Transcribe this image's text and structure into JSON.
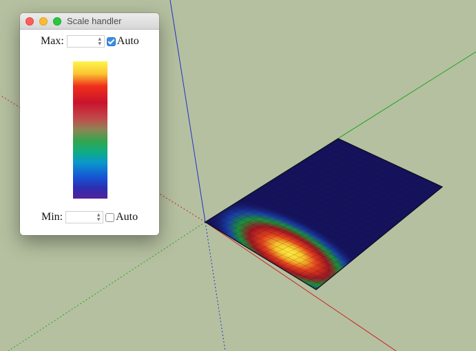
{
  "window": {
    "title": "Scale handler"
  },
  "max_control": {
    "label": "Max:",
    "value": "",
    "auto_label": "Auto",
    "auto_checked": true
  },
  "min_control": {
    "label": "Min:",
    "value": "",
    "auto_label": "Auto",
    "auto_checked": false
  },
  "color_scale": {
    "colors": [
      "#fff54a",
      "#f0301b",
      "#c9132c",
      "#c04c4c",
      "#34a44f",
      "#0fad83",
      "#0a96cc",
      "#1556d5",
      "#52229a"
    ]
  },
  "scene": {
    "background": "#b5c0a0",
    "axis_colors": {
      "red": "#c8201e",
      "green": "#1fa51f",
      "blue": "#1f2fc8"
    }
  }
}
